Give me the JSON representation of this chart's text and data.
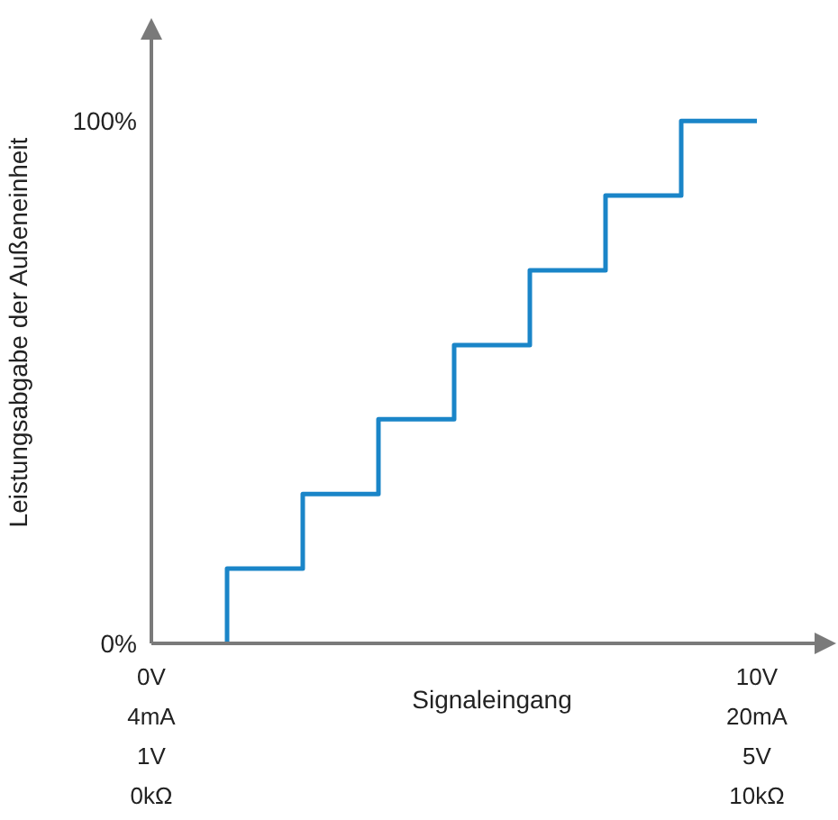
{
  "chart_data": {
    "type": "step",
    "xlabel": "Signaleingang",
    "ylabel": "Leistungsabgabe der Außeneinheit",
    "categories": [
      "0V\n4mA\n1V\n0kΩ",
      null,
      null,
      null,
      null,
      null,
      null,
      null,
      "10V\n20mA\n5V\n10kΩ",
      null
    ],
    "series": [
      {
        "color": "#1a85c8",
        "values": [
          null,
          0,
          14.3,
          28.6,
          42.9,
          57.1,
          71.4,
          85.7,
          100,
          null
        ]
      }
    ],
    "ylim": [
      0,
      119
    ],
    "yticks": [
      {
        "value": 0,
        "label": "0%"
      },
      {
        "value": 100,
        "label": "100%"
      }
    ],
    "grid": false,
    "legend": false,
    "marker": "none",
    "line_style": "solid"
  }
}
